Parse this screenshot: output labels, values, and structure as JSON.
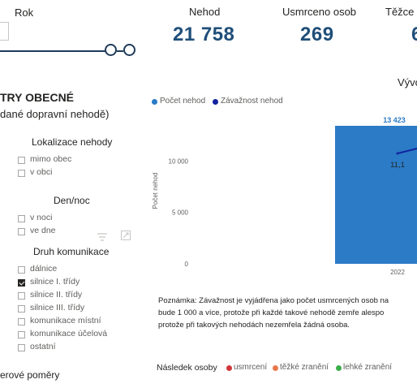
{
  "filters": {
    "rok_label": "Rok",
    "section_title": "TRY OBECNÉ",
    "section_subtitle": "dané dopravní nehodě)",
    "groups": [
      {
        "label": "Lokalizace nehody",
        "options": [
          {
            "label": "mimo obec",
            "checked": false
          },
          {
            "label": "v obci",
            "checked": false
          }
        ]
      },
      {
        "label": "Den/noc",
        "options": [
          {
            "label": "v noci",
            "checked": false
          },
          {
            "label": "ve dne",
            "checked": false
          }
        ]
      },
      {
        "label": "Druh komunikace",
        "options": [
          {
            "label": "dálnice",
            "checked": false
          },
          {
            "label": "silnice I. třídy",
            "checked": true
          },
          {
            "label": "silnice II. třídy",
            "checked": false
          },
          {
            "label": "silnice III. třídy",
            "checked": false
          },
          {
            "label": "komunikace místní",
            "checked": false
          },
          {
            "label": "komunikace účelová",
            "checked": false
          },
          {
            "label": "ostatní",
            "checked": false
          }
        ]
      }
    ],
    "next_group_label": "erové poměry"
  },
  "kpis": [
    {
      "title": "Nehod",
      "value": "21 758"
    },
    {
      "title": "Usmrceno osob",
      "value": "269"
    },
    {
      "title": "Těžce z",
      "value": "6"
    }
  ],
  "chart": {
    "title_partial": "Vývo",
    "legend": [
      {
        "label": "Počet nehod",
        "color": "#2b7bc7"
      },
      {
        "label": "Závažnost nehod",
        "color": "#12239e"
      }
    ]
  },
  "chart_data": {
    "type": "bar",
    "categories": [
      "2022"
    ],
    "series": [
      {
        "name": "Počet nehod",
        "values": [
          13423
        ],
        "data_labels": [
          "13 423"
        ]
      },
      {
        "name": "Závažnost nehod",
        "values": [
          11.1
        ],
        "data_labels": [
          "11,1"
        ]
      }
    ],
    "ylabel": "Počet nehod",
    "yticks": [
      "0",
      "5 000",
      "10 000"
    ],
    "ylim": [
      0,
      15000
    ]
  },
  "note": {
    "lines": [
      "Poznámka: Závažnost je vyjádřena jako počet usmrcených osob na",
      "bude 1 000 a více, protože při každé takové nehodě zemře alespo",
      "protože při takových nehodách nezemřela žádná osoba."
    ]
  },
  "bottom_legend": {
    "title": "Následek osoby",
    "items": [
      {
        "label": "usmrcení",
        "color": "#d13438"
      },
      {
        "label": "těžké zranění",
        "color": "#e8784b"
      },
      {
        "label": "lehké zranění",
        "color": "#3cae4a"
      }
    ]
  }
}
